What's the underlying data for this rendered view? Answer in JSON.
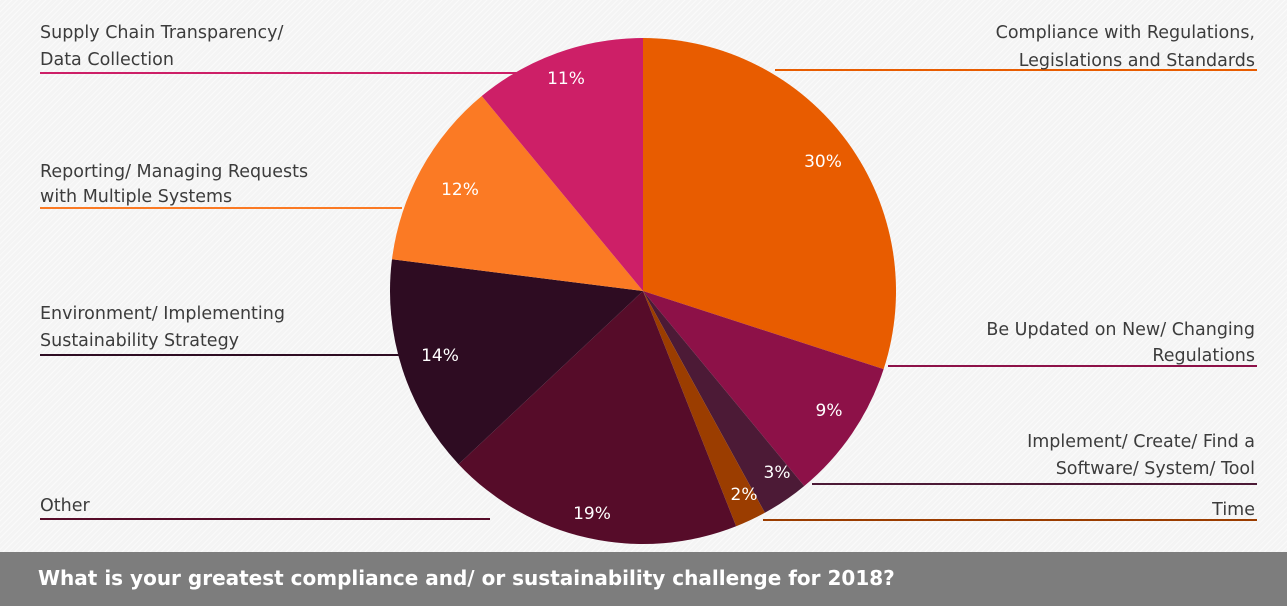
{
  "chart_data": {
    "type": "pie",
    "title": "What is your greatest compliance and/ or sustainability challenge for 2018?",
    "slices": [
      {
        "label_lines": [
          "Compliance with Regulations,",
          "Legislations and Standards"
        ],
        "value": 30,
        "value_label": "30%",
        "color": "#e85c00"
      },
      {
        "label_lines": [
          "Be Updated on New/ Changing",
          "Regulations"
        ],
        "value": 9,
        "value_label": "9%",
        "color": "#8d1148"
      },
      {
        "label_lines": [
          "Implement/ Create/ Find a",
          "Software/ System/ Tool"
        ],
        "value": 3,
        "value_label": "3%",
        "color": "#4c1a36"
      },
      {
        "label_lines": [
          "Time"
        ],
        "value": 2,
        "value_label": "2%",
        "color": "#9b3d00"
      },
      {
        "label_lines": [
          "Other"
        ],
        "value": 19,
        "value_label": "19%",
        "color": "#560c29"
      },
      {
        "label_lines": [
          "Environment/ Implementing",
          "Sustainability Strategy"
        ],
        "value": 14,
        "value_label": "14%",
        "color": "#2e0c22"
      },
      {
        "label_lines": [
          "Reporting/ Managing Requests",
          "with Multiple Systems"
        ],
        "value": 12,
        "value_label": "12%",
        "color": "#fb7a24"
      },
      {
        "label_lines": [
          "Supply Chain Transparency/",
          "Data Collection"
        ],
        "value": 11,
        "value_label": "11%",
        "color": "#cd1f67"
      }
    ]
  }
}
